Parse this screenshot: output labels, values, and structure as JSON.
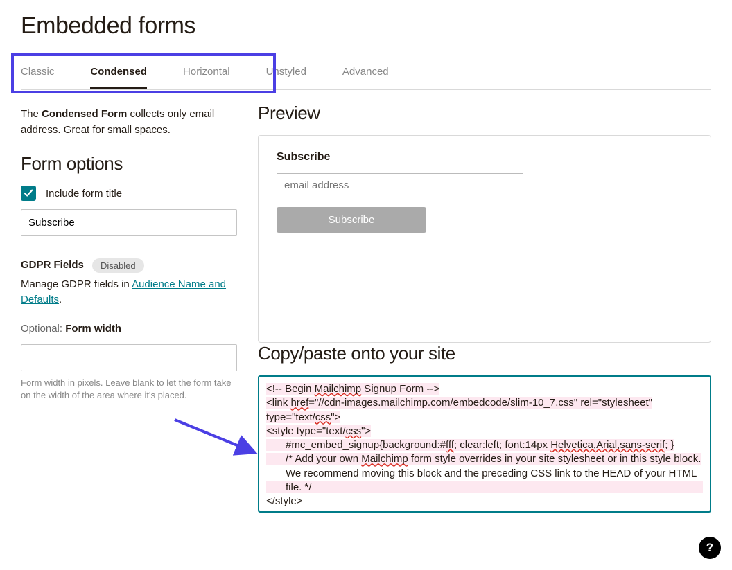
{
  "page": {
    "title": "Embedded forms"
  },
  "tabs": {
    "items": [
      {
        "label": "Classic",
        "active": false
      },
      {
        "label": "Condensed",
        "active": true
      },
      {
        "label": "Horizontal",
        "active": false
      },
      {
        "label": "Unstyled",
        "active": false
      },
      {
        "label": "Advanced",
        "active": false
      }
    ],
    "highlight_color": "#4b3fe4"
  },
  "left": {
    "intro_prefix": "The ",
    "intro_bold": "Condensed Form",
    "intro_suffix": " collects only email address. Great for small spaces.",
    "form_options_heading": "Form options",
    "include_title_checkbox_label": "Include form title",
    "include_title_checked": true,
    "form_title_value": "Subscribe",
    "gdpr_label": "GDPR Fields",
    "gdpr_badge": "Disabled",
    "gdpr_text_prefix": "Manage GDPR fields in ",
    "gdpr_link_text": "Audience Name and Defaults",
    "gdpr_text_suffix": ".",
    "optional_label_prefix": "Optional: ",
    "optional_label_bold": "Form width",
    "form_width_value": "",
    "form_width_hint": "Form width in pixels. Leave blank to let the form take on the width of the area where it's placed."
  },
  "right": {
    "preview_heading": "Preview",
    "preview_form_title": "Subscribe",
    "preview_email_placeholder": "email address",
    "preview_button_label": "Subscribe",
    "copy_heading": "Copy/paste onto your site",
    "code_lines": [
      {
        "segs": [
          {
            "t": "<!-- Begin "
          },
          {
            "t": "Mailchimp",
            "sq": true
          },
          {
            "t": " Signup Form -->"
          }
        ],
        "hl": true
      },
      {
        "segs": [
          {
            "t": "<link "
          },
          {
            "t": "href",
            "sq": true
          },
          {
            "t": "=\"//cdn-images.mailchimp.com/embedcode/slim-10_7.css\" rel=\"stylesheet\" type=\"text/"
          },
          {
            "t": "css",
            "sq": true
          },
          {
            "t": "\">"
          }
        ],
        "hl": true
      },
      {
        "segs": [
          {
            "t": "<style type=\"text/"
          },
          {
            "t": "css",
            "sq": true
          },
          {
            "t": "\">"
          }
        ],
        "hl": true
      },
      {
        "segs": [
          {
            "t": "#mc_embed_signup{background:#"
          },
          {
            "t": "fff",
            "sq": true
          },
          {
            "t": "; clear:left; font:14px "
          },
          {
            "t": "Helvetica,Arial,sans-serif",
            "sq": true
          },
          {
            "t": "; }"
          }
        ],
        "hl": true,
        "indent": 1
      },
      {
        "segs": [
          {
            "t": "/* Add your own "
          },
          {
            "t": "Mailchimp",
            "sq": true
          },
          {
            "t": " form style overrides in your site stylesheet or in this style block."
          }
        ],
        "hl": true,
        "indent": 1
      },
      {
        "segs": [
          {
            "t": "   We recommend moving this block and the preceding CSS link to the HEAD of your HTML file. */"
          }
        ],
        "hl": true,
        "indent": 1
      },
      {
        "segs": [
          {
            "t": "</style>"
          }
        ],
        "hl": false
      }
    ]
  },
  "help_fab_label": "?",
  "colors": {
    "accent_teal": "#007c89",
    "arrow": "#4b3fe4",
    "disabled_badge_bg": "#e6e6e6",
    "preview_btn_bg": "#aaaaaa",
    "code_highlight_bg": "#fde8f0"
  }
}
